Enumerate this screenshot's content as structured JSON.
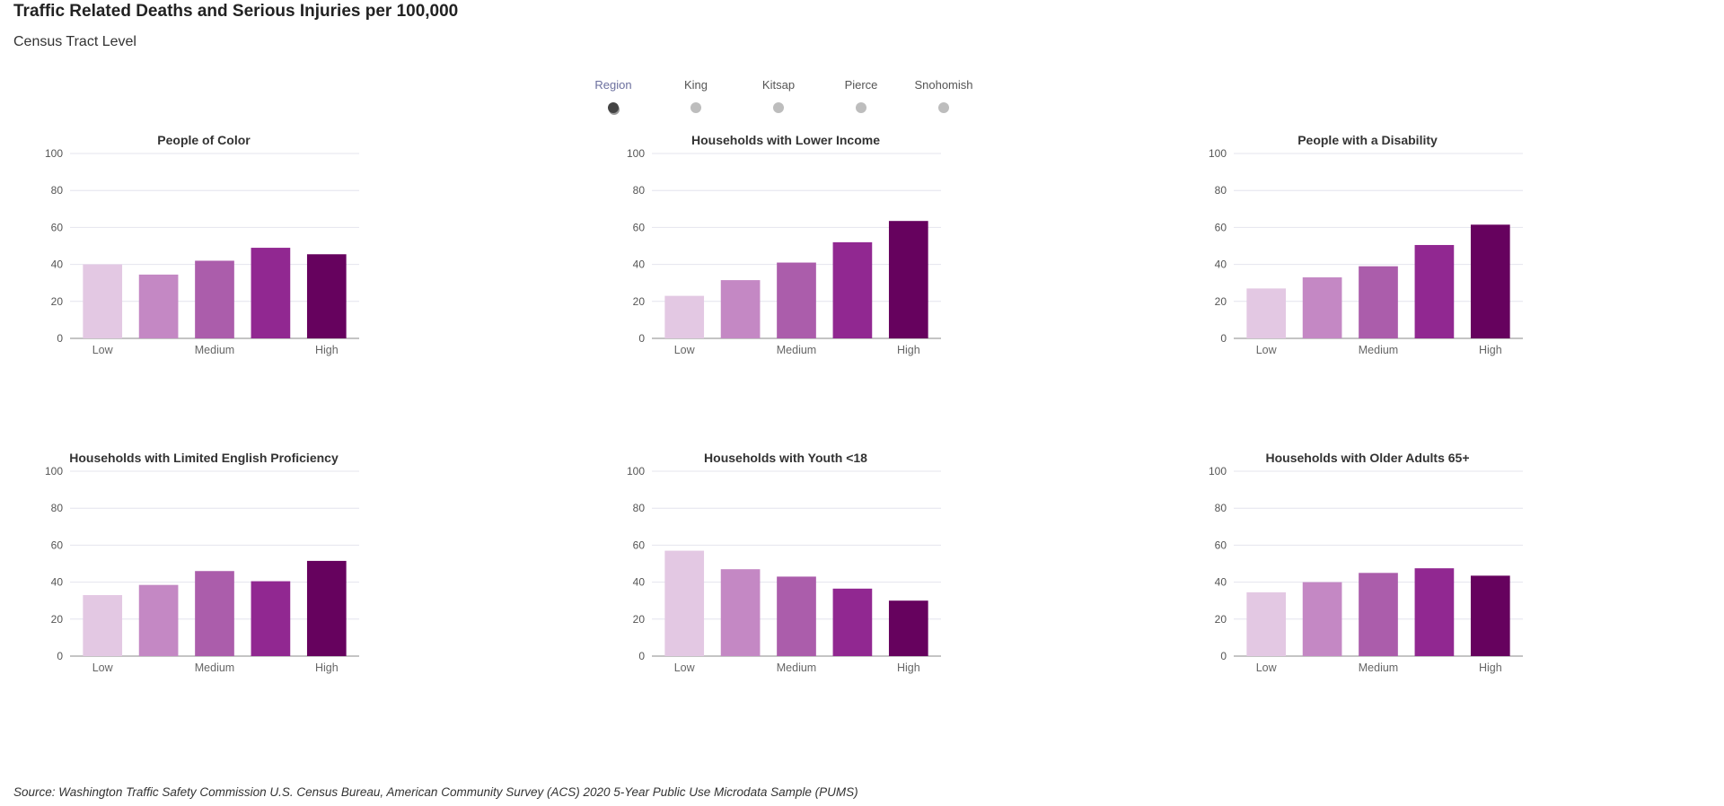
{
  "header": {
    "title": "Traffic Related Deaths and Serious Injuries per 100,000",
    "subtitle": "Census Tract Level"
  },
  "region_filter": {
    "options": [
      "Region",
      "King",
      "Kitsap",
      "Pierce",
      "Snohomish"
    ],
    "selected": "Region"
  },
  "colors": {
    "bars": [
      "#e3c8e3",
      "#c488c4",
      "#ab5dab",
      "#912891",
      "#66025e"
    ],
    "gridline": "#e4e4ee",
    "axis": "#888888"
  },
  "chart_data": [
    {
      "type": "bar",
      "title": "People of Color",
      "categories": [
        "Low",
        "",
        "Medium",
        "",
        "High"
      ],
      "values": [
        40,
        34.5,
        42,
        49,
        45.5
      ],
      "ylim": [
        0,
        100
      ],
      "yticks": [
        0,
        20,
        40,
        60,
        80,
        100
      ],
      "grid": true
    },
    {
      "type": "bar",
      "title": "Households with Lower Income",
      "categories": [
        "Low",
        "",
        "Medium",
        "",
        "High"
      ],
      "values": [
        23,
        31.5,
        41,
        52,
        63.5
      ],
      "ylim": [
        0,
        100
      ],
      "yticks": [
        0,
        20,
        40,
        60,
        80,
        100
      ],
      "grid": true
    },
    {
      "type": "bar",
      "title": "People with a Disability",
      "categories": [
        "Low",
        "",
        "Medium",
        "",
        "High"
      ],
      "values": [
        27,
        33,
        39,
        50.5,
        61.5
      ],
      "ylim": [
        0,
        100
      ],
      "yticks": [
        0,
        20,
        40,
        60,
        80,
        100
      ],
      "grid": true
    },
    {
      "type": "bar",
      "title": "Households with Limited English Proficiency",
      "categories": [
        "Low",
        "",
        "Medium",
        "",
        "High"
      ],
      "values": [
        33,
        38.5,
        46,
        40.5,
        51.5
      ],
      "ylim": [
        0,
        100
      ],
      "yticks": [
        0,
        20,
        40,
        60,
        80,
        100
      ],
      "grid": true
    },
    {
      "type": "bar",
      "title": "Households with Youth <18",
      "categories": [
        "Low",
        "",
        "Medium",
        "",
        "High"
      ],
      "values": [
        57,
        47,
        43,
        36.5,
        30
      ],
      "ylim": [
        0,
        100
      ],
      "yticks": [
        0,
        20,
        40,
        60,
        80,
        100
      ],
      "grid": true
    },
    {
      "type": "bar",
      "title": "Households with Older Adults 65+",
      "categories": [
        "Low",
        "",
        "Medium",
        "",
        "High"
      ],
      "values": [
        34.5,
        40,
        45,
        47.5,
        43.5
      ],
      "ylim": [
        0,
        100
      ],
      "yticks": [
        0,
        20,
        40,
        60,
        80,
        100
      ],
      "grid": true
    }
  ],
  "footer": {
    "source": "Source: Washington Traffic Safety Commission U.S. Census Bureau, American Community Survey (ACS) 2020 5-Year Public Use Microdata Sample (PUMS)"
  }
}
